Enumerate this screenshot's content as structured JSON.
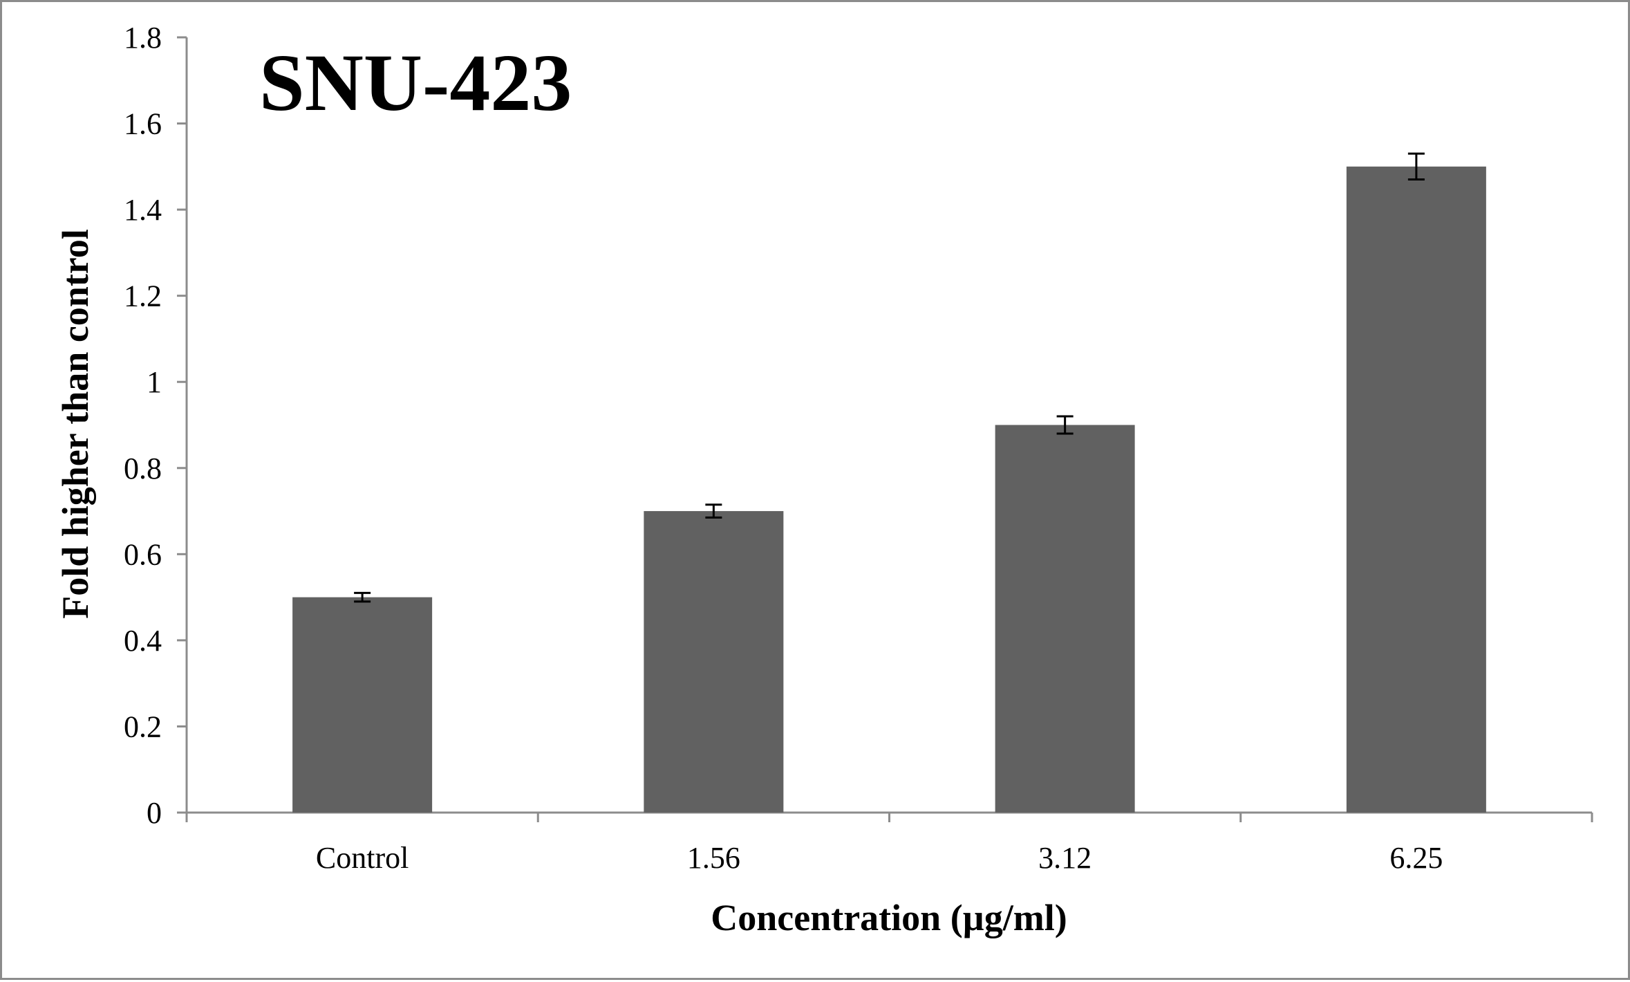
{
  "chart_data": {
    "type": "bar",
    "title": "SNU-423",
    "xlabel": "Concentration  (µg/ml)",
    "ylabel": "Fold higher than control",
    "categories": [
      "Control",
      "1.56",
      "3.12",
      "6.25"
    ],
    "values": [
      0.5,
      0.7,
      0.9,
      1.5
    ],
    "errors": [
      0.01,
      0.015,
      0.02,
      0.03
    ],
    "ylim": [
      0,
      1.8
    ],
    "yticks": [
      "0",
      "0.2",
      "0.4",
      "0.6",
      "0.8",
      "1",
      "1.2",
      "1.4",
      "1.6",
      "1.8"
    ],
    "ytick_values": [
      0,
      0.2,
      0.4,
      0.6,
      0.8,
      1,
      1.2,
      1.4,
      1.6,
      1.8
    ],
    "grid": false,
    "legend": "none",
    "colors": {
      "bar": "#616161",
      "axis": "#8c8c8c",
      "error_bar": "#000000"
    }
  }
}
